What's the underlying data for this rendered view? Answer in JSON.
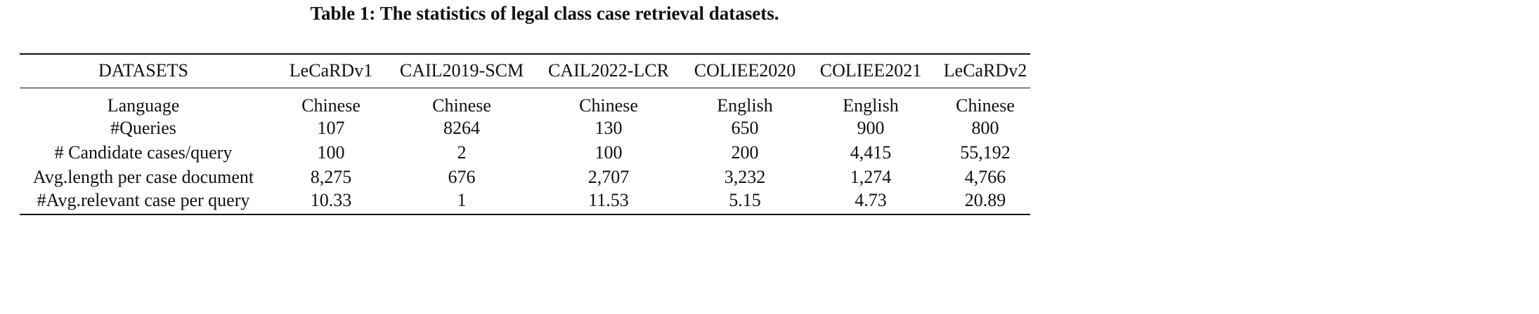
{
  "caption": "Table 1: The statistics of legal class case retrieval datasets.",
  "table": {
    "header_label": "DATASETS",
    "columns": [
      "LeCaRDv1",
      "CAIL2019-SCM",
      "CAIL2022-LCR",
      "COLIEE2020",
      "COLIEE2021",
      "LeCaRDv2"
    ],
    "rows": [
      {
        "label": "Language",
        "values": [
          "Chinese",
          "Chinese",
          "Chinese",
          "English",
          "English",
          "Chinese"
        ]
      },
      {
        "label": "#Queries",
        "values": [
          "107",
          "8264",
          "130",
          "650",
          "900",
          "800"
        ]
      },
      {
        "label": "# Candidate cases/query",
        "values": [
          "100",
          "2",
          "100",
          "200",
          "4,415",
          "55,192"
        ]
      },
      {
        "label": "Avg.length per case document",
        "values": [
          "8,275",
          "676",
          "2,707",
          "3,232",
          "1,274",
          "4,766"
        ]
      },
      {
        "label": "#Avg.relevant case per query",
        "values": [
          "10.33",
          "1",
          "11.53",
          "5.15",
          "4.73",
          "20.89"
        ]
      }
    ]
  }
}
